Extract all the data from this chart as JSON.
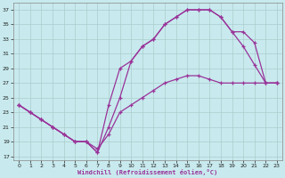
{
  "xlabel": "Windchill (Refroidissement éolien,°C)",
  "background_color": "#c8eaee",
  "grid_color": "#aacccc",
  "line_color": "#993399",
  "xlim": [
    -0.5,
    23.5
  ],
  "ylim": [
    16.5,
    38.0
  ],
  "yticks": [
    17,
    19,
    21,
    23,
    25,
    27,
    29,
    31,
    33,
    35,
    37
  ],
  "xticks": [
    0,
    1,
    2,
    3,
    4,
    5,
    6,
    7,
    8,
    9,
    10,
    11,
    12,
    13,
    14,
    15,
    16,
    17,
    18,
    19,
    20,
    21,
    22,
    23
  ],
  "series": [
    {
      "y": [
        24,
        23,
        22,
        21,
        20,
        19,
        19,
        18,
        20,
        23,
        24,
        25,
        26,
        27,
        27.5,
        28,
        28,
        27.5,
        27,
        27,
        27,
        27,
        27,
        27
      ]
    },
    {
      "y": [
        24,
        23,
        22,
        21,
        20,
        19,
        19,
        17.5,
        21,
        25,
        30,
        32,
        33,
        35,
        36,
        37,
        37,
        37,
        36,
        34,
        32,
        29.5,
        27,
        27
      ]
    },
    {
      "y": [
        24,
        23,
        22,
        21,
        20,
        19,
        19,
        17.5,
        24,
        29,
        30,
        32,
        33,
        35,
        36,
        37,
        37,
        37,
        36,
        34,
        34,
        32.5,
        27,
        27
      ]
    }
  ]
}
